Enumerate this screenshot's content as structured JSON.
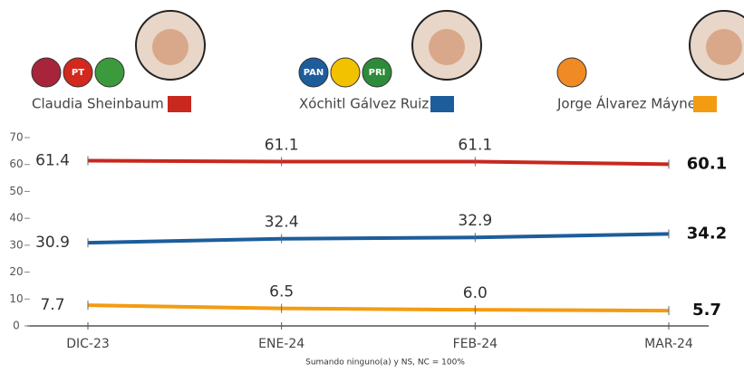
{
  "chart_data": {
    "type": "line",
    "categories": [
      "DIC-23",
      "ENE-24",
      "FEB-24",
      "MAR-24"
    ],
    "series": [
      {
        "name": "Claudia Sheinbaum",
        "color": "#c8281e",
        "values": [
          61.4,
          61.1,
          61.1,
          60.1
        ],
        "value_labels": [
          "61.4",
          "61.1",
          "61.1",
          "60.1"
        ],
        "logos": [
          "PT"
        ]
      },
      {
        "name": "Xóchitl Gálvez Ruiz",
        "color": "#1d5d9b",
        "values": [
          30.9,
          32.4,
          32.9,
          34.2
        ],
        "value_labels": [
          "30.9",
          "32.4",
          "32.9",
          "34.2"
        ],
        "logos": [
          "PAN",
          "PRI"
        ]
      },
      {
        "name": "Jorge Álvarez Máynez",
        "color": "#f39c12",
        "values": [
          7.7,
          6.5,
          6.0,
          5.7
        ],
        "value_labels": [
          "7.7",
          "6.5",
          "6.0",
          "5.7"
        ],
        "logos": []
      }
    ],
    "ylim": [
      0,
      70
    ],
    "yticks": [
      0,
      10,
      20,
      30,
      40,
      50,
      60,
      70
    ],
    "note": "Sumando ninguno(a) y NS, NC = 100%"
  }
}
